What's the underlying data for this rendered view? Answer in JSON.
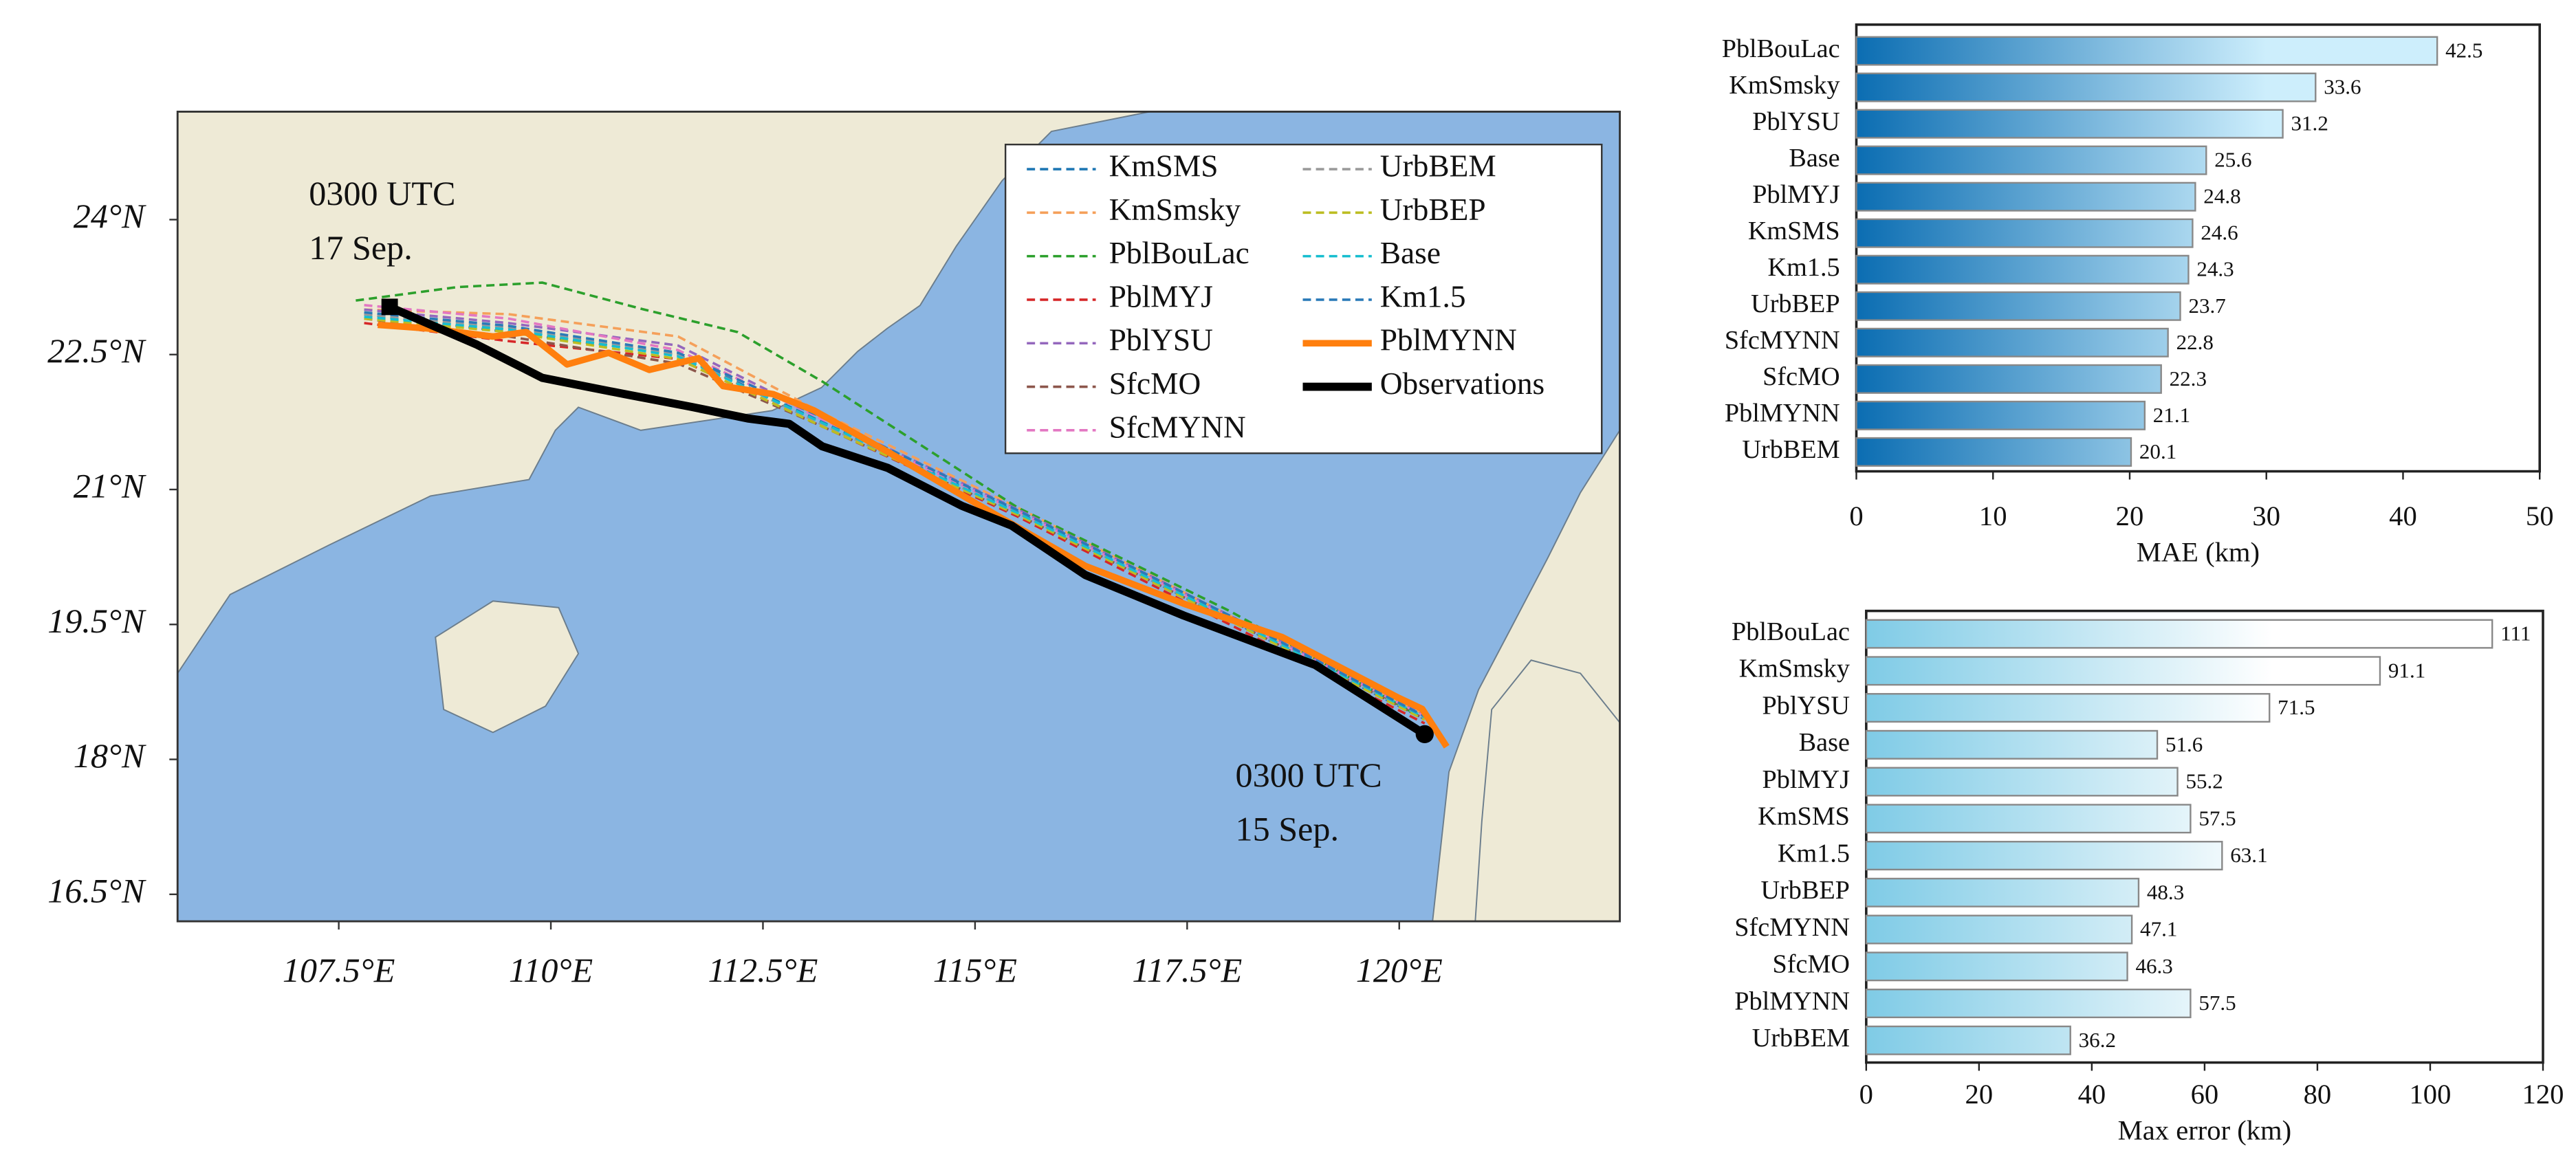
{
  "chart_data": [
    {
      "type": "line",
      "annotations": [
        [
          "0300 UTC",
          "17 Sep."
        ],
        [
          "0300 UTC",
          "15 Sep."
        ]
      ],
      "xlim": [
        105.6,
        122.6
      ],
      "ylim": [
        16.2,
        25.2
      ],
      "xticks": [
        {
          "value": 107.5,
          "label": "107.5°E"
        },
        {
          "value": 110,
          "label": "110°E"
        },
        {
          "value": 112.5,
          "label": "112.5°E"
        },
        {
          "value": 115,
          "label": "115°E"
        },
        {
          "value": 117.5,
          "label": "117.5°E"
        },
        {
          "value": 120,
          "label": "120°E"
        }
      ],
      "yticks": [
        {
          "value": 16.5,
          "label": "16.5°N"
        },
        {
          "value": 18,
          "label": "18°N"
        },
        {
          "value": 19.5,
          "label": "19.5°N"
        },
        {
          "value": 21,
          "label": "21°N"
        },
        {
          "value": 22.5,
          "label": "22.5°N"
        },
        {
          "value": 24,
          "label": "24°N"
        }
      ],
      "series": [
        {
          "name": "KmSMS",
          "color": "#1f77b4",
          "style": "dashed",
          "line_width": 1.5,
          "x": [
            107.8,
            109.5,
            111.5,
            113.2,
            115.5,
            118,
            120.3
          ],
          "values": [
            22.95,
            22.75,
            22.5,
            21.75,
            20.75,
            19.55,
            18.45
          ]
        },
        {
          "name": "KmSmsky",
          "color": "#f5a05a",
          "style": "dashed",
          "line_width": 1.5,
          "x": [
            107.8,
            109.5,
            111.5,
            113.2,
            115.5,
            118,
            120.3
          ],
          "values": [
            23.0,
            22.95,
            22.7,
            21.85,
            20.8,
            19.6,
            18.5
          ]
        },
        {
          "name": "PblBouLac",
          "color": "#2ca02c",
          "style": "dashed",
          "line_width": 1.5,
          "x": [
            107.7,
            108.9,
            109.9,
            111.1,
            112.2,
            113.2,
            115.5,
            118,
            120.2
          ],
          "values": [
            23.1,
            23.25,
            23.3,
            23.0,
            22.75,
            22.2,
            20.8,
            19.65,
            18.5
          ]
        },
        {
          "name": "PblMYJ",
          "color": "#d62728",
          "style": "dashed",
          "line_width": 1.5,
          "x": [
            107.8,
            109.5,
            111.5,
            113.2,
            115.5,
            118,
            120.3
          ],
          "values": [
            22.85,
            22.65,
            22.45,
            21.7,
            20.7,
            19.5,
            18.4
          ]
        },
        {
          "name": "PblYSU",
          "color": "#9467bd",
          "style": "dashed",
          "line_width": 1.5,
          "x": [
            107.8,
            109.5,
            111.5,
            113.2,
            115.5,
            118,
            120.3
          ],
          "values": [
            23.0,
            22.85,
            22.6,
            21.8,
            20.78,
            19.6,
            18.5
          ]
        },
        {
          "name": "SfcMO",
          "color": "#8c564b",
          "style": "dashed",
          "line_width": 1.5,
          "x": [
            107.8,
            109.5,
            111.5,
            113.2,
            115.5,
            118,
            120.3
          ],
          "values": [
            22.9,
            22.7,
            22.4,
            21.7,
            20.72,
            19.55,
            18.45
          ]
        },
        {
          "name": "SfcMYNN",
          "color": "#e377c2",
          "style": "dashed",
          "line_width": 1.5,
          "x": [
            107.8,
            109.5,
            111.5,
            113.2,
            115.5,
            118,
            120.3
          ],
          "values": [
            23.05,
            22.9,
            22.55,
            21.78,
            20.76,
            19.58,
            18.48
          ]
        },
        {
          "name": "UrbBEM",
          "color": "#9a9a9a",
          "style": "dashed",
          "line_width": 1.5,
          "x": [
            107.8,
            109.5,
            111.5,
            113.2,
            115.5,
            118,
            120.3
          ],
          "values": [
            22.95,
            22.8,
            22.5,
            21.72,
            20.74,
            19.56,
            18.46
          ]
        },
        {
          "name": "UrbBEP",
          "color": "#bcbd22",
          "style": "dashed",
          "line_width": 1.5,
          "x": [
            107.8,
            109.5,
            111.5,
            113.2,
            115.5,
            118,
            120.3
          ],
          "values": [
            22.9,
            22.75,
            22.45,
            21.7,
            20.72,
            19.54,
            18.44
          ]
        },
        {
          "name": "Base",
          "color": "#17becf",
          "style": "dashed",
          "line_width": 1.5,
          "x": [
            107.8,
            109.5,
            111.5,
            113.2,
            115.5,
            118,
            120.3
          ],
          "values": [
            22.92,
            22.78,
            22.48,
            21.74,
            20.74,
            19.57,
            18.47
          ]
        },
        {
          "name": "Km1.5",
          "color": "#2a7ab8",
          "style": "dashed",
          "line_width": 1.5,
          "x": [
            107.8,
            109.5,
            111.5,
            113.2,
            115.5,
            118,
            120.3
          ],
          "values": [
            22.97,
            22.82,
            22.52,
            21.8,
            20.77,
            19.6,
            18.48
          ]
        },
        {
          "name": "PblMYNN",
          "color": "#ff7f0e",
          "style": "solid",
          "line_width": 4,
          "x": [
            107.96,
            108.55,
            109.32,
            109.71,
            110.19,
            110.68,
            111.16,
            111.74,
            112.03,
            112.62,
            113.1,
            113.97,
            115.13,
            116.3,
            117.46,
            118.62,
            119.98,
            120.27,
            120.56
          ],
          "values": [
            22.83,
            22.79,
            22.7,
            22.75,
            22.39,
            22.52,
            22.33,
            22.46,
            22.15,
            22.06,
            21.88,
            21.42,
            20.78,
            20.15,
            19.73,
            19.36,
            18.69,
            18.56,
            18.14
          ]
        },
        {
          "name": "Observations",
          "color": "#000000",
          "style": "solid",
          "line_width": 5,
          "x": [
            108.1,
            109.13,
            109.9,
            110.87,
            111.65,
            112.32,
            112.81,
            113.2,
            113.97,
            114.84,
            115.43,
            116.3,
            117.46,
            119.01,
            120.3
          ],
          "values": [
            23.03,
            22.61,
            22.24,
            22.06,
            21.92,
            21.79,
            21.73,
            21.48,
            21.24,
            20.82,
            20.6,
            20.05,
            19.6,
            19.05,
            18.28
          ]
        }
      ]
    },
    {
      "type": "bar",
      "x_label": "MAE (km)",
      "gradient": [
        "#0b6db2",
        "#cdeefc"
      ],
      "categories": [
        "PblBouLac",
        "KmSmsky",
        "PblYSU",
        "Base",
        "PblMYJ",
        "KmSMS",
        "Km1.5",
        "UrbBEP",
        "SfcMYNN",
        "SfcMO",
        "PblMYNN",
        "UrbBEM"
      ],
      "values": [
        42.5,
        33.6,
        31.2,
        25.6,
        24.8,
        24.6,
        24.3,
        23.7,
        22.8,
        22.3,
        21.1,
        20.1
      ],
      "xlim": [
        0,
        50
      ],
      "xticks": [
        0,
        10,
        20,
        30,
        40,
        50
      ]
    },
    {
      "type": "bar",
      "x_label": "Max error (km)",
      "gradient": [
        "#7fcbe6",
        "#ffffff"
      ],
      "categories": [
        "PblBouLac",
        "KmSmsky",
        "PblYSU",
        "Base",
        "PblMYJ",
        "KmSMS",
        "Km1.5",
        "UrbBEP",
        "SfcMYNN",
        "SfcMO",
        "PblMYNN",
        "UrbBEM"
      ],
      "values": [
        111,
        91.1,
        71.5,
        51.6,
        55.2,
        57.5,
        63.1,
        48.3,
        47.1,
        46.3,
        57.5,
        36.2
      ],
      "xlim": [
        0,
        120
      ],
      "xticks": [
        0,
        20,
        40,
        60,
        80,
        100,
        120
      ]
    }
  ]
}
